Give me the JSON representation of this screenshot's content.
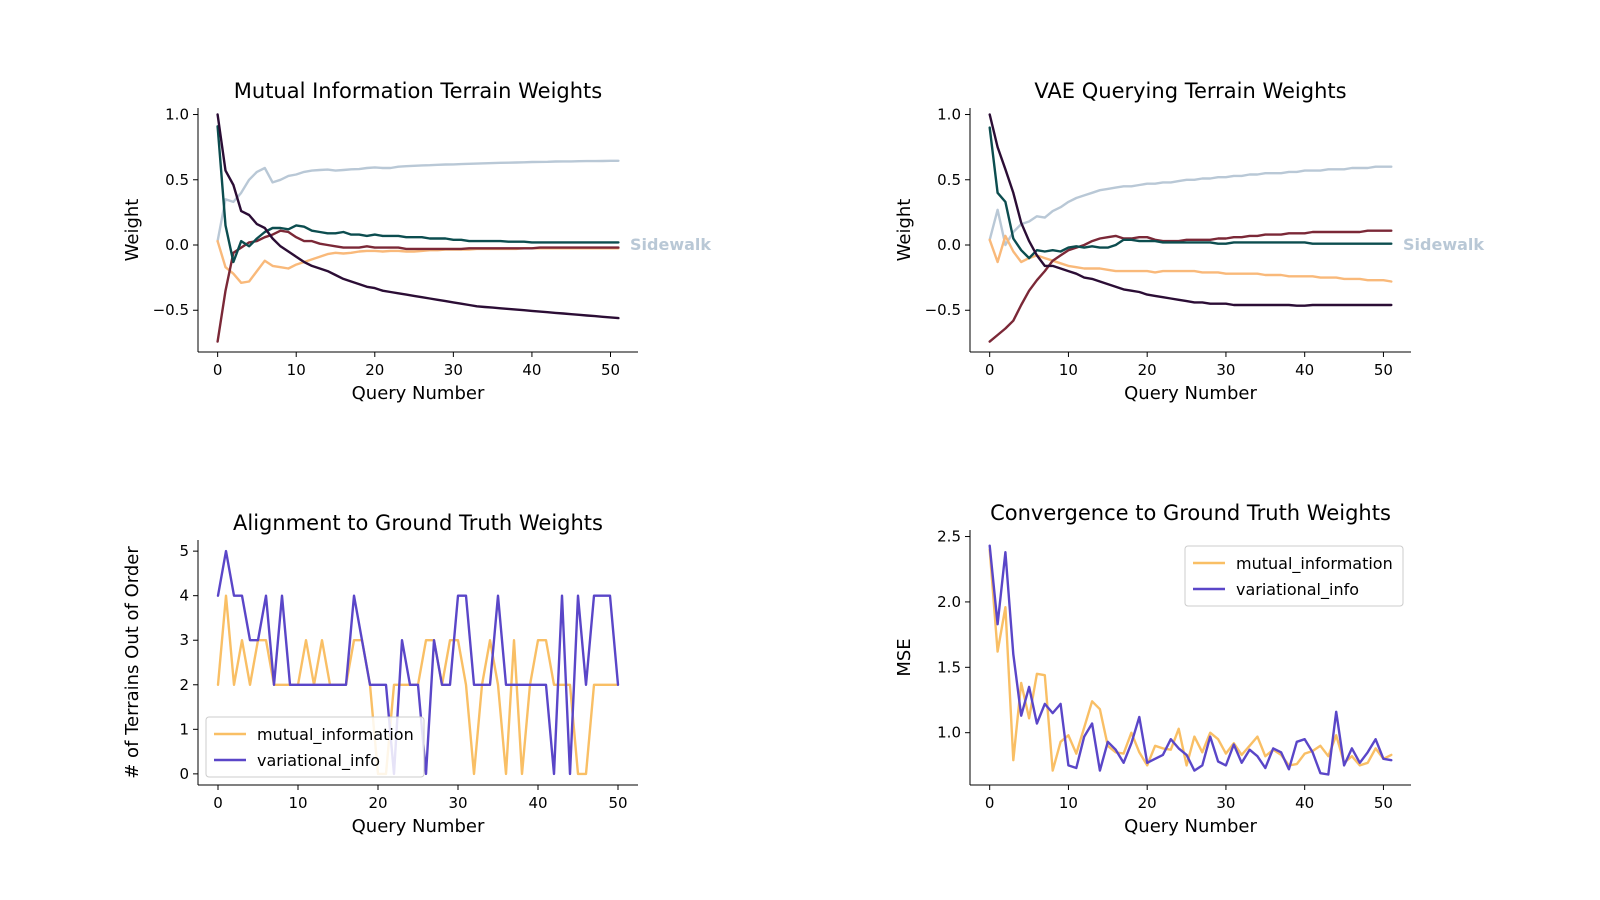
{
  "chart_data": [
    {
      "id": "mi",
      "type": "line",
      "title": "Mutual Information Terrain Weights",
      "xlabel": "Query Number",
      "ylabel": "Weight",
      "xlim": [
        -2.5,
        53.5
      ],
      "ylim": [
        -0.82,
        1.05
      ],
      "xticks": [
        0,
        10,
        20,
        30,
        40,
        50
      ],
      "yticks": [
        1.0,
        0.5,
        0.0,
        -0.5
      ],
      "ytick_labels": [
        "1.0",
        "0.5",
        "0.0",
        "−0.5"
      ],
      "annotation": {
        "text": "Sidewalk",
        "color": "#b9c8d6",
        "y": 0.0
      },
      "legend": null,
      "x": [
        0,
        1,
        2,
        3,
        4,
        5,
        6,
        7,
        8,
        9,
        10,
        11,
        12,
        13,
        14,
        15,
        16,
        17,
        18,
        19,
        20,
        21,
        22,
        23,
        24,
        25,
        26,
        27,
        28,
        29,
        30,
        31,
        32,
        33,
        34,
        35,
        36,
        37,
        38,
        39,
        40,
        41,
        42,
        43,
        44,
        45,
        46,
        47,
        48,
        49,
        50,
        51
      ],
      "series": [
        {
          "color": "#b9c8d6",
          "values": [
            0.03,
            0.35,
            0.33,
            0.4,
            0.5,
            0.56,
            0.59,
            0.48,
            0.5,
            0.53,
            0.54,
            0.56,
            0.57,
            0.575,
            0.578,
            0.57,
            0.575,
            0.58,
            0.582,
            0.59,
            0.595,
            0.59,
            0.59,
            0.6,
            0.604,
            0.607,
            0.61,
            0.612,
            0.615,
            0.617,
            0.618,
            0.62,
            0.622,
            0.624,
            0.626,
            0.628,
            0.63,
            0.631,
            0.632,
            0.634,
            0.636,
            0.637,
            0.638,
            0.64,
            0.641,
            0.641,
            0.642,
            0.643,
            0.643,
            0.644,
            0.645,
            0.645
          ]
        },
        {
          "color": "#f9b97a",
          "values": [
            0.03,
            -0.17,
            -0.22,
            -0.29,
            -0.28,
            -0.2,
            -0.12,
            -0.16,
            -0.17,
            -0.18,
            -0.15,
            -0.13,
            -0.11,
            -0.09,
            -0.07,
            -0.06,
            -0.065,
            -0.06,
            -0.05,
            -0.045,
            -0.045,
            -0.05,
            -0.045,
            -0.045,
            -0.05,
            -0.05,
            -0.045,
            -0.04,
            -0.04,
            -0.035,
            -0.035,
            -0.035,
            -0.035,
            -0.03,
            -0.03,
            -0.03,
            -0.03,
            -0.03,
            -0.03,
            -0.025,
            -0.025,
            -0.025,
            -0.025,
            -0.025,
            -0.025,
            -0.025,
            -0.025,
            -0.025,
            -0.025,
            -0.025,
            -0.025,
            -0.025
          ]
        },
        {
          "color": "#7b2837",
          "values": [
            -0.74,
            -0.35,
            -0.06,
            -0.02,
            0.02,
            0.03,
            0.06,
            0.08,
            0.11,
            0.1,
            0.06,
            0.03,
            0.03,
            0.01,
            0.0,
            -0.01,
            -0.02,
            -0.02,
            -0.02,
            -0.01,
            -0.02,
            -0.02,
            -0.02,
            -0.02,
            -0.03,
            -0.03,
            -0.03,
            -0.03,
            -0.03,
            -0.03,
            -0.03,
            -0.03,
            -0.025,
            -0.025,
            -0.025,
            -0.025,
            -0.025,
            -0.025,
            -0.025,
            -0.025,
            -0.025,
            -0.02,
            -0.02,
            -0.02,
            -0.02,
            -0.02,
            -0.02,
            -0.02,
            -0.02,
            -0.02,
            -0.02,
            -0.02
          ]
        },
        {
          "color": "#0c4d4f",
          "values": [
            0.91,
            0.15,
            -0.13,
            0.03,
            -0.01,
            0.05,
            0.1,
            0.13,
            0.13,
            0.12,
            0.15,
            0.14,
            0.11,
            0.1,
            0.09,
            0.09,
            0.1,
            0.08,
            0.08,
            0.07,
            0.08,
            0.07,
            0.07,
            0.07,
            0.06,
            0.06,
            0.06,
            0.05,
            0.05,
            0.05,
            0.04,
            0.04,
            0.03,
            0.03,
            0.03,
            0.03,
            0.03,
            0.025,
            0.025,
            0.025,
            0.02,
            0.02,
            0.02,
            0.02,
            0.02,
            0.02,
            0.02,
            0.02,
            0.02,
            0.02,
            0.02,
            0.02
          ]
        },
        {
          "color": "#2b0d35",
          "values": [
            1.0,
            0.57,
            0.46,
            0.26,
            0.23,
            0.16,
            0.13,
            0.05,
            -0.01,
            -0.05,
            -0.09,
            -0.13,
            -0.16,
            -0.18,
            -0.2,
            -0.23,
            -0.26,
            -0.28,
            -0.3,
            -0.32,
            -0.33,
            -0.35,
            -0.36,
            -0.37,
            -0.38,
            -0.39,
            -0.4,
            -0.41,
            -0.42,
            -0.43,
            -0.44,
            -0.45,
            -0.46,
            -0.47,
            -0.475,
            -0.48,
            -0.485,
            -0.49,
            -0.495,
            -0.5,
            -0.505,
            -0.51,
            -0.515,
            -0.52,
            -0.525,
            -0.53,
            -0.535,
            -0.54,
            -0.545,
            -0.55,
            -0.555,
            -0.56
          ]
        }
      ]
    },
    {
      "id": "vae",
      "type": "line",
      "title": "VAE Querying Terrain Weights",
      "xlabel": "Query Number",
      "ylabel": "Weight",
      "xlim": [
        -2.5,
        53.5
      ],
      "ylim": [
        -0.82,
        1.05
      ],
      "xticks": [
        0,
        10,
        20,
        30,
        40,
        50
      ],
      "yticks": [
        1.0,
        0.5,
        0.0,
        -0.5
      ],
      "ytick_labels": [
        "1.0",
        "0.5",
        "0.0",
        "−0.5"
      ],
      "annotation": {
        "text": "Sidewalk",
        "color": "#b9c8d6",
        "y": 0.0
      },
      "legend": null,
      "x": [
        0,
        1,
        2,
        3,
        4,
        5,
        6,
        7,
        8,
        9,
        10,
        11,
        12,
        13,
        14,
        15,
        16,
        17,
        18,
        19,
        20,
        21,
        22,
        23,
        24,
        25,
        26,
        27,
        28,
        29,
        30,
        31,
        32,
        33,
        34,
        35,
        36,
        37,
        38,
        39,
        40,
        41,
        42,
        43,
        44,
        45,
        46,
        47,
        48,
        49,
        50,
        51
      ],
      "series": [
        {
          "color": "#b9c8d6",
          "values": [
            0.04,
            0.27,
            0.0,
            0.1,
            0.16,
            0.18,
            0.22,
            0.21,
            0.26,
            0.29,
            0.33,
            0.36,
            0.38,
            0.4,
            0.42,
            0.43,
            0.44,
            0.45,
            0.45,
            0.46,
            0.47,
            0.47,
            0.48,
            0.48,
            0.49,
            0.5,
            0.5,
            0.51,
            0.51,
            0.52,
            0.52,
            0.53,
            0.53,
            0.54,
            0.54,
            0.55,
            0.55,
            0.55,
            0.56,
            0.56,
            0.57,
            0.57,
            0.57,
            0.58,
            0.58,
            0.58,
            0.59,
            0.59,
            0.59,
            0.6,
            0.6,
            0.6
          ]
        },
        {
          "color": "#f9b97a",
          "values": [
            0.04,
            -0.13,
            0.07,
            -0.05,
            -0.13,
            -0.1,
            -0.08,
            -0.1,
            -0.12,
            -0.14,
            -0.16,
            -0.17,
            -0.18,
            -0.18,
            -0.18,
            -0.19,
            -0.2,
            -0.2,
            -0.2,
            -0.2,
            -0.2,
            -0.21,
            -0.2,
            -0.2,
            -0.2,
            -0.2,
            -0.2,
            -0.21,
            -0.21,
            -0.21,
            -0.22,
            -0.22,
            -0.22,
            -0.22,
            -0.22,
            -0.23,
            -0.23,
            -0.23,
            -0.24,
            -0.24,
            -0.24,
            -0.24,
            -0.25,
            -0.25,
            -0.25,
            -0.26,
            -0.26,
            -0.26,
            -0.27,
            -0.27,
            -0.27,
            -0.28
          ]
        },
        {
          "color": "#7b2837",
          "values": [
            -0.74,
            -0.69,
            -0.64,
            -0.58,
            -0.46,
            -0.35,
            -0.27,
            -0.2,
            -0.12,
            -0.08,
            -0.04,
            -0.02,
            0.0,
            0.03,
            0.05,
            0.06,
            0.07,
            0.05,
            0.05,
            0.06,
            0.06,
            0.04,
            0.03,
            0.03,
            0.03,
            0.04,
            0.04,
            0.04,
            0.04,
            0.05,
            0.05,
            0.06,
            0.06,
            0.07,
            0.07,
            0.08,
            0.08,
            0.08,
            0.09,
            0.09,
            0.09,
            0.1,
            0.1,
            0.1,
            0.1,
            0.1,
            0.1,
            0.1,
            0.11,
            0.11,
            0.11,
            0.11
          ]
        },
        {
          "color": "#0c4d4f",
          "values": [
            0.9,
            0.4,
            0.33,
            0.05,
            -0.04,
            -0.1,
            -0.04,
            -0.05,
            -0.04,
            -0.05,
            -0.02,
            -0.01,
            -0.02,
            -0.01,
            -0.02,
            -0.02,
            0.0,
            0.04,
            0.04,
            0.03,
            0.03,
            0.03,
            0.02,
            0.02,
            0.02,
            0.02,
            0.02,
            0.02,
            0.02,
            0.01,
            0.01,
            0.02,
            0.02,
            0.02,
            0.02,
            0.02,
            0.02,
            0.02,
            0.02,
            0.02,
            0.02,
            0.01,
            0.01,
            0.01,
            0.01,
            0.01,
            0.01,
            0.01,
            0.01,
            0.01,
            0.01,
            0.01
          ]
        },
        {
          "color": "#2b0d35",
          "values": [
            1.0,
            0.75,
            0.58,
            0.4,
            0.17,
            0.03,
            -0.08,
            -0.16,
            -0.16,
            -0.18,
            -0.2,
            -0.22,
            -0.25,
            -0.26,
            -0.28,
            -0.3,
            -0.32,
            -0.34,
            -0.35,
            -0.36,
            -0.38,
            -0.39,
            -0.4,
            -0.41,
            -0.42,
            -0.43,
            -0.44,
            -0.44,
            -0.45,
            -0.45,
            -0.45,
            -0.46,
            -0.46,
            -0.46,
            -0.46,
            -0.46,
            -0.46,
            -0.46,
            -0.46,
            -0.465,
            -0.465,
            -0.46,
            -0.46,
            -0.46,
            -0.46,
            -0.46,
            -0.46,
            -0.46,
            -0.46,
            -0.46,
            -0.46,
            -0.46
          ]
        }
      ]
    },
    {
      "id": "align",
      "type": "line",
      "title": "Alignment to Ground Truth Weights",
      "xlabel": "Query Number",
      "ylabel": "# of Terrains Out of Order",
      "xlim": [
        -2.5,
        52.5
      ],
      "ylim": [
        -0.25,
        5.25
      ],
      "xticks": [
        0,
        10,
        20,
        30,
        40,
        50
      ],
      "yticks": [
        5,
        4,
        3,
        2,
        1,
        0
      ],
      "ytick_labels": [
        "5",
        "4",
        "3",
        "2",
        "1",
        "0"
      ],
      "annotation": null,
      "legend": {
        "loc": "lower left",
        "entries": [
          "mutual_information",
          "variational_info"
        ]
      },
      "x": [
        0,
        1,
        2,
        3,
        4,
        5,
        6,
        7,
        8,
        9,
        10,
        11,
        12,
        13,
        14,
        15,
        16,
        17,
        18,
        19,
        20,
        21,
        22,
        23,
        24,
        25,
        26,
        27,
        28,
        29,
        30,
        31,
        32,
        33,
        34,
        35,
        36,
        37,
        38,
        39,
        40,
        41,
        42,
        43,
        44,
        45,
        46,
        47,
        48,
        49,
        50
      ],
      "series": [
        {
          "name": "mutual_information",
          "color": "#f9bf65",
          "values": [
            2,
            4,
            2,
            3,
            2,
            3,
            3,
            2,
            2,
            2,
            2,
            3,
            2,
            3,
            2,
            2,
            2,
            3,
            3,
            2,
            0,
            0,
            2,
            2,
            2,
            2,
            3,
            3,
            2,
            3,
            3,
            2,
            0,
            2,
            3,
            2,
            0,
            3,
            0,
            2,
            3,
            3,
            2,
            2,
            2,
            0,
            0,
            2,
            2,
            2,
            2
          ]
        },
        {
          "name": "variational_info",
          "color": "#5a46c8",
          "values": [
            4,
            5,
            4,
            4,
            3,
            3,
            4,
            2,
            4,
            2,
            2,
            2,
            2,
            2,
            2,
            2,
            2,
            4,
            3,
            2,
            2,
            2,
            0,
            3,
            2,
            2,
            0,
            3,
            2,
            2,
            4,
            4,
            2,
            2,
            2,
            4,
            2,
            2,
            2,
            2,
            2,
            2,
            0,
            4,
            0,
            4,
            2,
            4,
            4,
            4,
            2
          ]
        }
      ]
    },
    {
      "id": "conv",
      "type": "line",
      "title": "Convergence to Ground Truth Weights",
      "xlabel": "Query Number",
      "ylabel": "MSE",
      "xlim": [
        -2.5,
        53.5
      ],
      "ylim": [
        0.6,
        2.55
      ],
      "xticks": [
        0,
        10,
        20,
        30,
        40,
        50
      ],
      "yticks": [
        2.5,
        2.0,
        1.5,
        1.0
      ],
      "ytick_labels": [
        "2.5",
        "2.0",
        "1.5",
        "1.0"
      ],
      "annotation": null,
      "legend": {
        "loc": "upper right",
        "entries": [
          "mutual_information",
          "variational_info"
        ]
      },
      "x": [
        0,
        1,
        2,
        3,
        4,
        5,
        6,
        7,
        8,
        9,
        10,
        11,
        12,
        13,
        14,
        15,
        16,
        17,
        18,
        19,
        20,
        21,
        22,
        23,
        24,
        25,
        26,
        27,
        28,
        29,
        30,
        31,
        32,
        33,
        34,
        35,
        36,
        37,
        38,
        39,
        40,
        41,
        42,
        43,
        44,
        45,
        46,
        47,
        48,
        49,
        50,
        51
      ],
      "series": [
        {
          "name": "mutual_information",
          "color": "#f9bf65",
          "values": [
            2.4,
            1.62,
            1.96,
            0.79,
            1.38,
            1.11,
            1.45,
            1.44,
            0.71,
            0.93,
            0.98,
            0.84,
            1.04,
            1.24,
            1.18,
            0.9,
            0.85,
            0.84,
            1.0,
            0.85,
            0.75,
            0.9,
            0.88,
            0.87,
            1.03,
            0.75,
            0.97,
            0.85,
            1.0,
            0.95,
            0.84,
            0.92,
            0.83,
            0.9,
            0.97,
            0.82,
            0.87,
            0.83,
            0.75,
            0.76,
            0.84,
            0.86,
            0.9,
            0.82,
            0.98,
            0.77,
            0.82,
            0.75,
            0.77,
            0.88,
            0.8,
            0.83
          ]
        },
        {
          "name": "variational_info",
          "color": "#5a46c8",
          "values": [
            2.43,
            1.83,
            2.38,
            1.6,
            1.13,
            1.35,
            1.07,
            1.22,
            1.15,
            1.22,
            0.75,
            0.73,
            0.97,
            1.07,
            0.71,
            0.93,
            0.87,
            0.77,
            0.92,
            1.12,
            0.77,
            0.8,
            0.83,
            0.95,
            0.88,
            0.83,
            0.71,
            0.75,
            0.97,
            0.78,
            0.75,
            0.91,
            0.77,
            0.87,
            0.82,
            0.73,
            0.88,
            0.85,
            0.72,
            0.93,
            0.95,
            0.85,
            0.69,
            0.68,
            1.16,
            0.75,
            0.88,
            0.77,
            0.85,
            0.95,
            0.8,
            0.79
          ]
        }
      ]
    }
  ]
}
